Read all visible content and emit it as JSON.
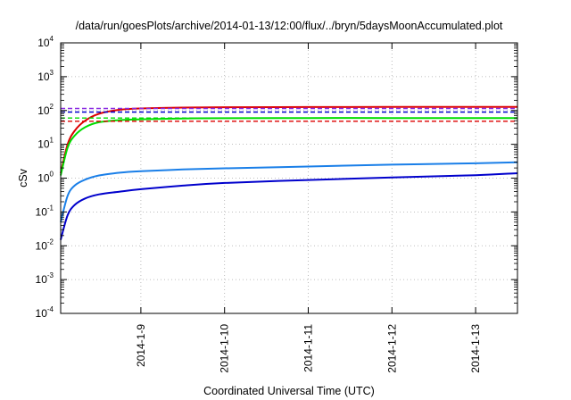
{
  "chart_data": {
    "type": "line",
    "title": "/data/run/goesPlots/archive/2014-01-13/12:00/flux/../bryn/5daysMoonAccumulated.plot",
    "xlabel": "Coordinated Universal Time (UTC)",
    "ylabel": "cSv",
    "yscale": "log",
    "ylim": [
      0.0001,
      10000
    ],
    "xlim": [
      "2014-01-08 01:00",
      "2014-01-13 12:00"
    ],
    "grid": true,
    "y_ticks": [
      {
        "base": "10",
        "exp": "-4"
      },
      {
        "base": "10",
        "exp": "-3"
      },
      {
        "base": "10",
        "exp": "-2"
      },
      {
        "base": "10",
        "exp": "-1"
      },
      {
        "base": "10",
        "exp": "0"
      },
      {
        "base": "10",
        "exp": "1"
      },
      {
        "base": "10",
        "exp": "2"
      },
      {
        "base": "10",
        "exp": "3"
      },
      {
        "base": "10",
        "exp": "4"
      }
    ],
    "x_ticks": [
      "2014-1-9",
      "2014-1-10",
      "2014-1-11",
      "2014-1-12",
      "2014-1-13"
    ],
    "series": [
      {
        "color": "#dd0000",
        "dash": false,
        "x": [
          "2014-01-08 01:00",
          "2014-01-08 03:00",
          "2014-01-08 05:00",
          "2014-01-08 08:00",
          "2014-01-08 12:00",
          "2014-01-08 18:00",
          "2014-01-09 00:00",
          "2014-01-09 12:00",
          "2014-01-10 00:00",
          "2014-01-11 00:00",
          "2014-01-12 00:00",
          "2014-01-13 00:00",
          "2014-01-13 12:00"
        ],
        "values": [
          1.4,
          10,
          25,
          50,
          80,
          105,
          115,
          122,
          125,
          126,
          127,
          127,
          127
        ]
      },
      {
        "color": "#00dd00",
        "dash": false,
        "x": [
          "2014-01-08 01:00",
          "2014-01-08 03:00",
          "2014-01-08 05:00",
          "2014-01-08 08:00",
          "2014-01-08 12:00",
          "2014-01-08 18:00",
          "2014-01-09 00:00",
          "2014-01-09 12:00",
          "2014-01-10 00:00",
          "2014-01-11 00:00",
          "2014-01-12 00:00",
          "2014-01-13 00:00",
          "2014-01-13 12:00"
        ],
        "values": [
          1.2,
          8,
          18,
          32,
          45,
          52,
          55,
          58,
          59,
          60,
          60,
          60,
          60
        ]
      },
      {
        "color": "#1a7fe8",
        "dash": false,
        "x": [
          "2014-01-08 01:00",
          "2014-01-08 03:00",
          "2014-01-08 05:00",
          "2014-01-08 08:00",
          "2014-01-08 12:00",
          "2014-01-08 18:00",
          "2014-01-09 00:00",
          "2014-01-09 12:00",
          "2014-01-10 00:00",
          "2014-01-11 00:00",
          "2014-01-12 00:00",
          "2014-01-13 00:00",
          "2014-01-13 12:00"
        ],
        "values": [
          0.05,
          0.3,
          0.6,
          0.9,
          1.2,
          1.45,
          1.6,
          1.8,
          1.95,
          2.2,
          2.5,
          2.75,
          2.95
        ]
      },
      {
        "color": "#0000cc",
        "dash": false,
        "x": [
          "2014-01-08 01:00",
          "2014-01-08 03:00",
          "2014-01-08 05:00",
          "2014-01-08 08:00",
          "2014-01-08 12:00",
          "2014-01-08 18:00",
          "2014-01-09 00:00",
          "2014-01-09 12:00",
          "2014-01-10 00:00",
          "2014-01-11 00:00",
          "2014-01-12 00:00",
          "2014-01-13 00:00",
          "2014-01-13 12:00"
        ],
        "values": [
          0.015,
          0.08,
          0.16,
          0.25,
          0.33,
          0.4,
          0.47,
          0.6,
          0.72,
          0.88,
          1.05,
          1.22,
          1.4
        ]
      },
      {
        "color": "#8a2be2",
        "dash": true,
        "x": [
          "2014-01-08 01:00",
          "2014-01-13 12:00"
        ],
        "values": [
          115,
          115
        ]
      },
      {
        "color": "#0000cc",
        "dash": true,
        "x": [
          "2014-01-08 01:00",
          "2014-01-13 12:00"
        ],
        "values": [
          90,
          90
        ]
      },
      {
        "color": "#00dd00",
        "dash": true,
        "x": [
          "2014-01-08 01:00",
          "2014-01-13 12:00"
        ],
        "values": [
          60,
          60
        ]
      },
      {
        "color": "#dd0000",
        "dash": true,
        "x": [
          "2014-01-08 01:00",
          "2014-01-13 12:00"
        ],
        "values": [
          48,
          48
        ]
      }
    ]
  }
}
